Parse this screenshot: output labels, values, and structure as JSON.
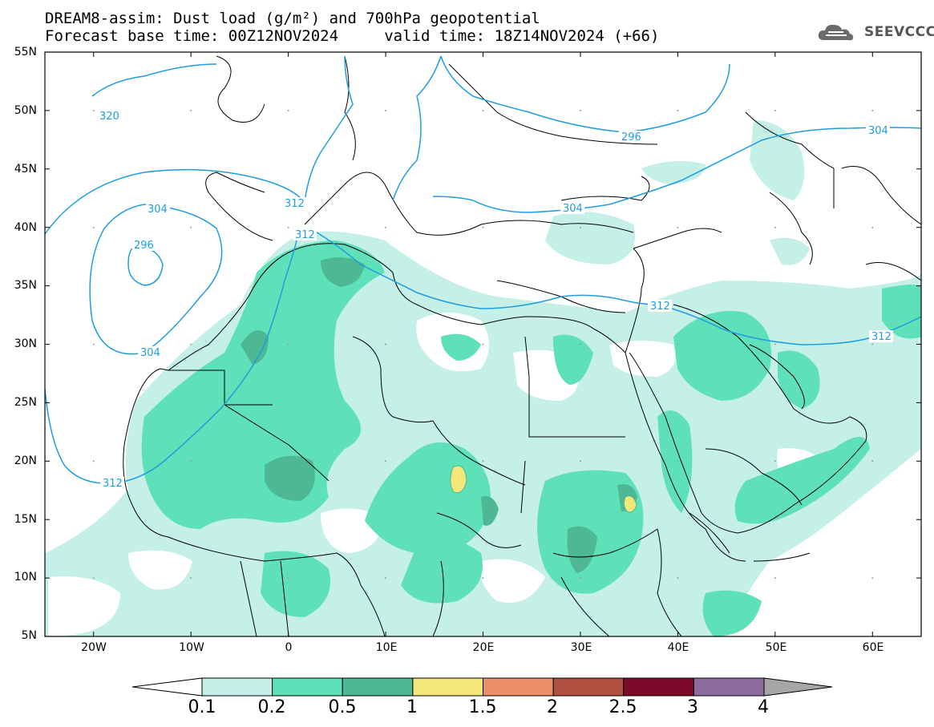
{
  "title": {
    "line1": "DREAM8-assim: Dust load (g/m²) and 700hPa geopotential",
    "line2": "Forecast base time: 00Z12NOV2024     valid time: 18Z14NOV2024 (+66)"
  },
  "logo": {
    "icon": "cloud-icon",
    "text": "SEEVCCC"
  },
  "map": {
    "lat_labels": [
      "55N",
      "50N",
      "45N",
      "40N",
      "35N",
      "30N",
      "25N",
      "20N",
      "15N",
      "10N",
      "5N"
    ],
    "lon_labels": [
      "20W",
      "10W",
      "0",
      "10E",
      "20E",
      "30E",
      "40E",
      "50E",
      "60E"
    ],
    "lon_range": [
      -25,
      65
    ],
    "lat_range": [
      5,
      55
    ]
  },
  "contours": {
    "color": "#1e9ee0",
    "labels": [
      "320",
      "312",
      "312",
      "304",
      "296",
      "304",
      "304",
      "296",
      "304",
      "312",
      "312",
      "312"
    ]
  },
  "colorbar": {
    "labels": [
      "0.1",
      "0.2",
      "0.5",
      "1",
      "1.5",
      "2",
      "2.5",
      "3",
      "4"
    ],
    "colors": [
      "#c4f0e8",
      "#5ee0b8",
      "#4db893",
      "#f5e67a",
      "#eb8f68",
      "#b05040",
      "#7d0a2a",
      "#8c6b9e"
    ],
    "under_color": "#ffffff",
    "over_color": "#a6a6a6"
  },
  "legend_colors": {
    "dust_light": "#c4f0e8",
    "dust_mid": "#5ee0b8",
    "dust_high": "#4db893",
    "dust_peak": "#f5e67a"
  }
}
